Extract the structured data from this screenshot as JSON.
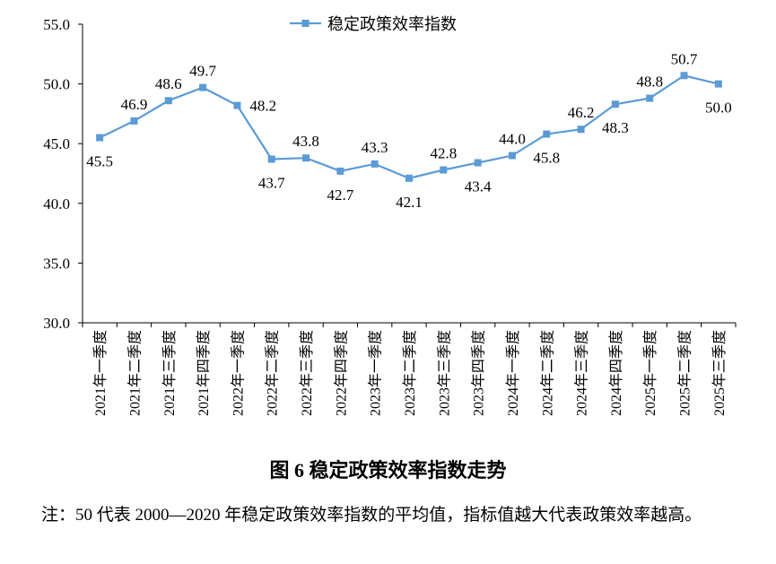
{
  "chart_data": {
    "type": "line",
    "categories": [
      "2021年一季度",
      "2021年二季度",
      "2021年三季度",
      "2021年四季度",
      "2022年一季度",
      "2022年二季度",
      "2022年三季度",
      "2022年四季度",
      "2023年一季度",
      "2023年二季度",
      "2023年三季度",
      "2023年四季度",
      "2024年一季度",
      "2024年二季度",
      "2024年三季度",
      "2024年四季度",
      "2025年一季度",
      "2025年二季度",
      "2025年三季度"
    ],
    "series": [
      {
        "name": "稳定政策效率指数",
        "values": [
          45.5,
          46.9,
          48.6,
          49.7,
          48.2,
          43.7,
          43.8,
          42.7,
          43.3,
          42.1,
          42.8,
          43.4,
          44.0,
          45.8,
          46.2,
          48.3,
          48.8,
          50.7,
          50.0
        ],
        "label_positions": [
          "below",
          "above",
          "above",
          "above",
          "right",
          "below",
          "above",
          "below",
          "above",
          "below",
          "above",
          "below",
          "above",
          "below",
          "above",
          "below",
          "above",
          "above",
          "below"
        ],
        "color": "#5b9bd5",
        "marker": "square"
      }
    ],
    "ylim": [
      30.0,
      55.0
    ],
    "yticks": [
      "30.0",
      "35.0",
      "40.0",
      "45.0",
      "50.0",
      "55.0"
    ],
    "grid": false,
    "legend": "top-center",
    "title": "图 6  稳定政策效率指数走势"
  },
  "caption": "图 6  稳定政策效率指数走势",
  "note": "注：50 代表 2000—2020 年稳定政策效率指数的平均值，指标值越大代表政策效率越高。"
}
